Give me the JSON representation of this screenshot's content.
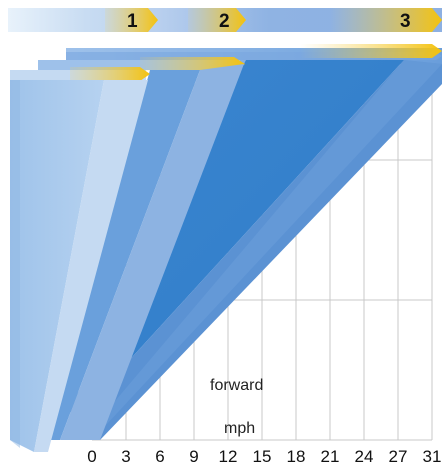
{
  "gear_band": {
    "gears": [
      {
        "number": "1"
      },
      {
        "number": "2"
      },
      {
        "number": "3"
      }
    ]
  },
  "axis": {
    "direction_label": "forward",
    "unit_label": "mph",
    "ticks": [
      "0",
      "3",
      "6",
      "9",
      "12",
      "15",
      "18",
      "21",
      "24",
      "27",
      "31"
    ]
  },
  "colors": {
    "band_light": "#d6e8f7",
    "band_mid": "#7fa6dc",
    "arrow_yellow": "#f4c20d",
    "gear1_face": "#a9c9ec",
    "gear1_side": "#c5daf2",
    "gear2_face": "#6aa0dc",
    "gear2_side": "#8db3e2",
    "gear3_face": "#3f88cf",
    "gear3_side": "#5b92d3",
    "grid": "#c9c9c9"
  }
}
